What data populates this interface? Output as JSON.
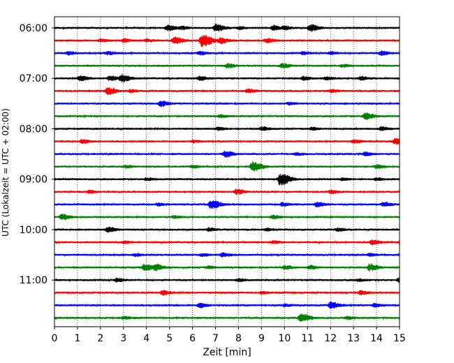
{
  "chart_data": {
    "type": "line",
    "title": "",
    "xlabel": "Zeit  [min]",
    "ylabel": "UTC (Lokalzeit = UTC + 02:00)",
    "xlim": [
      0,
      15
    ],
    "x_ticks": [
      0,
      1,
      2,
      3,
      4,
      5,
      6,
      7,
      8,
      9,
      10,
      11,
      12,
      13,
      14,
      15
    ],
    "grid": "vertical dotted",
    "y_tick_labels": [
      "06:00",
      "07:00",
      "08:00",
      "09:00",
      "10:00",
      "11:00"
    ],
    "trace_colors": [
      "#000000",
      "#ff0000",
      "#0000ff",
      "#008000"
    ],
    "series": [
      {
        "start": "06:00",
        "color": "#000000",
        "events": [
          [
            4.9,
            0.5
          ],
          [
            7.0,
            0.6
          ],
          [
            9.5,
            0.4
          ],
          [
            11.1,
            0.55
          ],
          [
            5.5,
            0.25
          ],
          [
            8.0,
            0.2
          ],
          [
            10.0,
            0.25
          ]
        ]
      },
      {
        "start": "06:15",
        "color": "#ff0000",
        "events": [
          [
            5.2,
            0.55
          ],
          [
            6.4,
            1.0
          ],
          [
            7.2,
            0.45
          ],
          [
            9.2,
            0.35
          ],
          [
            3.0,
            0.25
          ],
          [
            4.0,
            0.2
          ],
          [
            2.0,
            0.2
          ]
        ]
      },
      {
        "start": "06:30",
        "color": "#0000ff",
        "events": [
          [
            0.6,
            0.25
          ],
          [
            2.3,
            0.25
          ],
          [
            6.3,
            0.25
          ],
          [
            10.8,
            0.25
          ],
          [
            14.2,
            0.35
          ],
          [
            12.0,
            0.2
          ]
        ]
      },
      {
        "start": "06:45",
        "color": "#008000",
        "events": [
          [
            7.5,
            0.35
          ],
          [
            9.9,
            0.35
          ],
          [
            12.5,
            0.2
          ]
        ]
      },
      {
        "start": "07:00",
        "color": "#000000",
        "events": [
          [
            1.1,
            0.4
          ],
          [
            2.4,
            0.4
          ],
          [
            2.9,
            0.6
          ],
          [
            6.3,
            0.35
          ],
          [
            10.8,
            0.3
          ],
          [
            11.8,
            0.25
          ],
          [
            13.3,
            0.25
          ]
        ]
      },
      {
        "start": "07:15",
        "color": "#ff0000",
        "events": [
          [
            2.3,
            0.6
          ],
          [
            3.3,
            0.2
          ],
          [
            8.4,
            0.3
          ],
          [
            12.0,
            0.2
          ]
        ]
      },
      {
        "start": "07:30",
        "color": "#0000ff",
        "events": [
          [
            4.6,
            0.45
          ],
          [
            10.2,
            0.2
          ]
        ]
      },
      {
        "start": "07:45",
        "color": "#008000",
        "events": [
          [
            13.5,
            0.55
          ],
          [
            7.2,
            0.2
          ]
        ]
      },
      {
        "start": "08:00",
        "color": "#000000",
        "events": [
          [
            7.1,
            0.25
          ],
          [
            9.0,
            0.3
          ],
          [
            14.2,
            0.3
          ],
          [
            11.2,
            0.2
          ]
        ]
      },
      {
        "start": "08:15",
        "color": "#ff0000",
        "events": [
          [
            1.2,
            0.3
          ],
          [
            13.0,
            0.3
          ],
          [
            14.8,
            0.45
          ],
          [
            6.0,
            0.2
          ]
        ]
      },
      {
        "start": "08:30",
        "color": "#0000ff",
        "events": [
          [
            7.4,
            0.5
          ],
          [
            13.5,
            0.3
          ],
          [
            10.5,
            0.2
          ]
        ]
      },
      {
        "start": "08:45",
        "color": "#008000",
        "events": [
          [
            8.6,
            0.8
          ],
          [
            14.0,
            0.3
          ],
          [
            3.1,
            0.2
          ],
          [
            6.0,
            0.2
          ]
        ]
      },
      {
        "start": "09:00",
        "color": "#000000",
        "events": [
          [
            9.8,
            1.0
          ],
          [
            4.0,
            0.2
          ],
          [
            14.0,
            0.2
          ],
          [
            12.5,
            0.2
          ]
        ]
      },
      {
        "start": "09:15",
        "color": "#ff0000",
        "events": [
          [
            7.9,
            0.4
          ],
          [
            12.0,
            0.25
          ],
          [
            1.5,
            0.2
          ]
        ]
      },
      {
        "start": "09:30",
        "color": "#0000ff",
        "events": [
          [
            6.8,
            0.75
          ],
          [
            9.9,
            0.3
          ],
          [
            11.4,
            0.4
          ],
          [
            14.3,
            0.35
          ],
          [
            4.5,
            0.2
          ]
        ]
      },
      {
        "start": "09:45",
        "color": "#008000",
        "events": [
          [
            0.3,
            0.45
          ],
          [
            5.2,
            0.2
          ],
          [
            9.5,
            0.25
          ]
        ]
      },
      {
        "start": "10:00",
        "color": "#000000",
        "events": [
          [
            2.3,
            0.4
          ],
          [
            6.7,
            0.25
          ],
          [
            12.3,
            0.25
          ],
          [
            9.2,
            0.2
          ]
        ]
      },
      {
        "start": "10:15",
        "color": "#ff0000",
        "events": [
          [
            13.8,
            0.4
          ],
          [
            9.5,
            0.2
          ],
          [
            3.0,
            0.2
          ]
        ]
      },
      {
        "start": "10:30",
        "color": "#0000ff",
        "events": [
          [
            7.3,
            0.3
          ],
          [
            6.4,
            0.2
          ],
          [
            13.7,
            0.2
          ],
          [
            3.5,
            0.2
          ]
        ]
      },
      {
        "start": "10:45",
        "color": "#008000",
        "events": [
          [
            3.9,
            0.55
          ],
          [
            4.4,
            0.45
          ],
          [
            10.0,
            0.3
          ],
          [
            11.1,
            0.3
          ],
          [
            13.7,
            0.55
          ],
          [
            6.7,
            0.2
          ]
        ]
      },
      {
        "start": "11:00",
        "color": "#000000",
        "events": [
          [
            2.7,
            0.3
          ],
          [
            15.0,
            0.5
          ],
          [
            13.2,
            0.2
          ],
          [
            8.0,
            0.2
          ]
        ]
      },
      {
        "start": "11:15",
        "color": "#ff0000",
        "events": [
          [
            4.7,
            0.35
          ],
          [
            13.3,
            0.3
          ],
          [
            9.0,
            0.2
          ]
        ]
      },
      {
        "start": "11:30",
        "color": "#0000ff",
        "events": [
          [
            6.3,
            0.35
          ],
          [
            12.0,
            0.55
          ],
          [
            13.9,
            0.3
          ],
          [
            10.0,
            0.2
          ]
        ]
      },
      {
        "start": "11:45",
        "color": "#008000",
        "events": [
          [
            10.7,
            0.7
          ],
          [
            3.0,
            0.2
          ],
          [
            12.7,
            0.2
          ]
        ]
      }
    ]
  }
}
